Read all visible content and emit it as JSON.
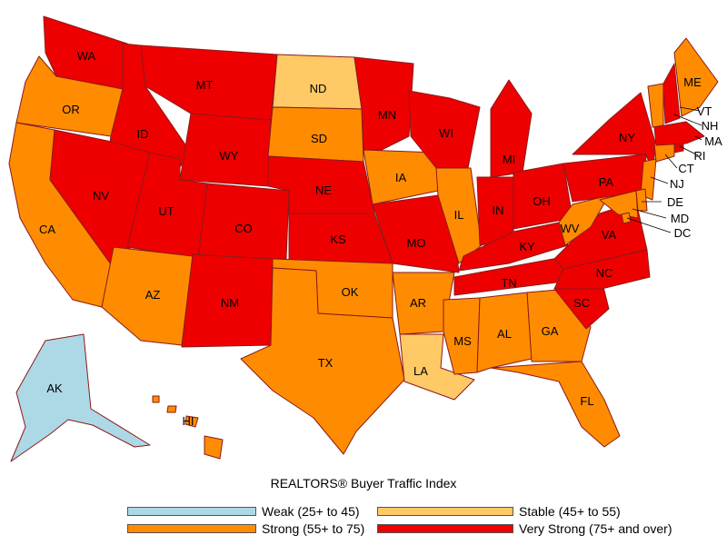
{
  "title": "REALTORS® Buyer Traffic Index",
  "colors": {
    "weak": "#add8e6",
    "stable": "#ffc966",
    "strong": "#ff8c00",
    "very_strong": "#ee0000",
    "border": "#8b1a1a"
  },
  "legend": [
    {
      "key": "weak",
      "label": "Weak (25+ to 45)"
    },
    {
      "key": "stable",
      "label": "Stable (45+ to 55)"
    },
    {
      "key": "strong",
      "label": "Strong (55+ to 75)"
    },
    {
      "key": "very_strong",
      "label": "Very Strong (75+ and over)"
    }
  ],
  "states": {
    "WA": "very_strong",
    "OR": "strong",
    "CA": "strong",
    "ID": "very_strong",
    "NV": "very_strong",
    "MT": "very_strong",
    "WY": "very_strong",
    "UT": "very_strong",
    "AZ": "strong",
    "CO": "very_strong",
    "NM": "very_strong",
    "ND": "stable",
    "SD": "strong",
    "NE": "very_strong",
    "KS": "very_strong",
    "OK": "strong",
    "TX": "strong",
    "MN": "very_strong",
    "IA": "strong",
    "MO": "very_strong",
    "AR": "strong",
    "LA": "stable",
    "WI": "very_strong",
    "IL": "strong",
    "MI": "very_strong",
    "IN": "very_strong",
    "OH": "very_strong",
    "KY": "very_strong",
    "TN": "very_strong",
    "MS": "strong",
    "AL": "strong",
    "GA": "strong",
    "FL": "strong",
    "SC": "very_strong",
    "NC": "very_strong",
    "VA": "very_strong",
    "WV": "strong",
    "PA": "very_strong",
    "NY": "very_strong",
    "ME": "strong",
    "VT": "strong",
    "NH": "very_strong",
    "MA": "very_strong",
    "RI": "very_strong",
    "CT": "strong",
    "NJ": "strong",
    "DE": "strong",
    "MD": "strong",
    "DC": "strong",
    "AK": "weak",
    "HI": "strong"
  },
  "labels": {
    "WA": "WA",
    "OR": "OR",
    "CA": "CA",
    "ID": "ID",
    "NV": "NV",
    "MT": "MT",
    "WY": "WY",
    "UT": "UT",
    "AZ": "AZ",
    "CO": "CO",
    "NM": "NM",
    "ND": "ND",
    "SD": "SD",
    "NE": "NE",
    "KS": "KS",
    "OK": "OK",
    "TX": "TX",
    "MN": "MN",
    "IA": "IA",
    "MO": "MO",
    "AR": "AR",
    "LA": "LA",
    "WI": "WI",
    "IL": "IL",
    "MI": "MI",
    "IN": "IN",
    "OH": "OH",
    "KY": "KY",
    "TN": "TN",
    "MS": "MS",
    "AL": "AL",
    "GA": "GA",
    "FL": "FL",
    "SC": "SC",
    "NC": "NC",
    "VA": "VA",
    "WV": "WV",
    "PA": "PA",
    "NY": "NY",
    "ME": "ME",
    "VT": "VT",
    "NH": "NH",
    "MA": "MA",
    "RI": "RI",
    "CT": "CT",
    "NJ": "NJ",
    "DE": "DE",
    "MD": "MD",
    "DC": "DC",
    "AK": "AK",
    "HI": "HI"
  }
}
